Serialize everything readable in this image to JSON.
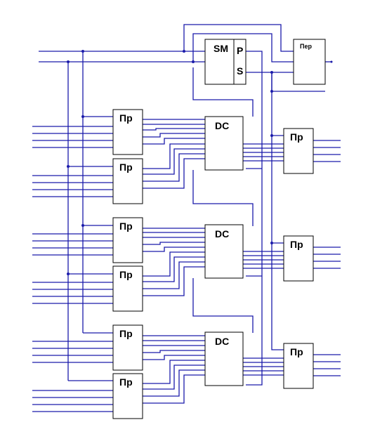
{
  "labels": {
    "sm": "SM",
    "p": "P",
    "s": "S",
    "per": "Пер",
    "pr": "Пр",
    "dc": "DC"
  },
  "colors": {
    "wire": "#1a1aaa",
    "block_stroke": "#000000",
    "background": "#ffffff"
  }
}
